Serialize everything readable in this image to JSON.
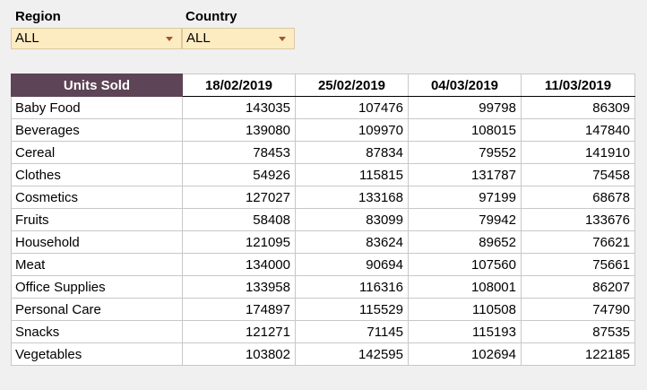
{
  "filters": {
    "region": {
      "label": "Region",
      "value": "ALL"
    },
    "country": {
      "label": "Country",
      "value": "ALL"
    }
  },
  "table": {
    "corner_header": "Units Sold",
    "dates": [
      "18/02/2019",
      "25/02/2019",
      "04/03/2019",
      "11/03/2019"
    ],
    "rows": [
      {
        "name": "Baby Food",
        "values": [
          "143035",
          "107476",
          "99798",
          "86309"
        ]
      },
      {
        "name": "Beverages",
        "values": [
          "139080",
          "109970",
          "108015",
          "147840"
        ]
      },
      {
        "name": "Cereal",
        "values": [
          "78453",
          "87834",
          "79552",
          "141910"
        ]
      },
      {
        "name": "Clothes",
        "values": [
          "54926",
          "115815",
          "131787",
          "75458"
        ]
      },
      {
        "name": "Cosmetics",
        "values": [
          "127027",
          "133168",
          "97199",
          "68678"
        ]
      },
      {
        "name": "Fruits",
        "values": [
          "58408",
          "83099",
          "79942",
          "133676"
        ]
      },
      {
        "name": "Household",
        "values": [
          "121095",
          "83624",
          "89652",
          "76621"
        ]
      },
      {
        "name": "Meat",
        "values": [
          "134000",
          "90694",
          "107560",
          "75661"
        ]
      },
      {
        "name": "Office Supplies",
        "values": [
          "133958",
          "116316",
          "108001",
          "86207"
        ]
      },
      {
        "name": "Personal Care",
        "values": [
          "174897",
          "115529",
          "110508",
          "74790"
        ]
      },
      {
        "name": "Snacks",
        "values": [
          "121271",
          "71145",
          "115193",
          "87535"
        ]
      },
      {
        "name": "Vegetables",
        "values": [
          "103802",
          "142595",
          "102694",
          "122185"
        ]
      }
    ]
  },
  "colors": {
    "header_accent": "#5d4456",
    "dropdown_bg": "#fdebc2",
    "dropdown_arrow": "#a0562a"
  }
}
